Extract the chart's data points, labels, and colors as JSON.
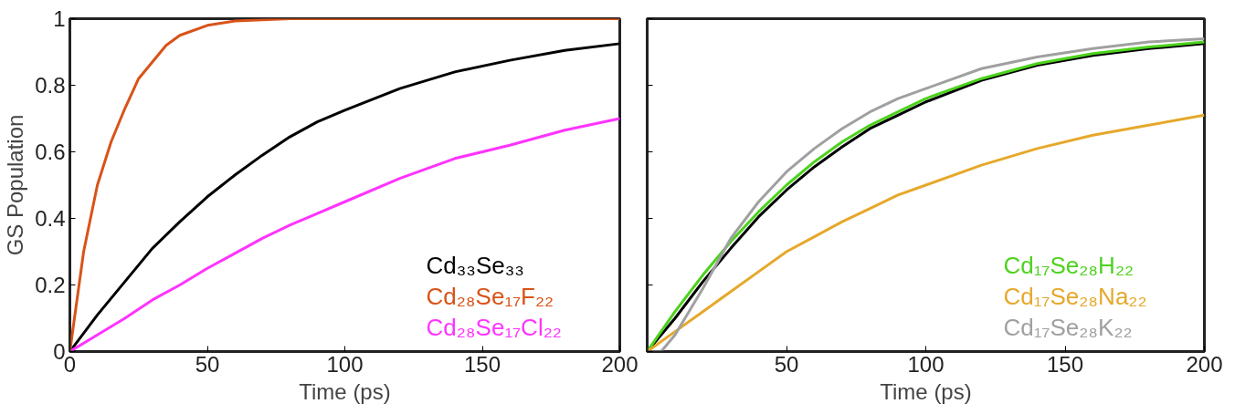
{
  "chart_data": [
    {
      "type": "line",
      "xlabel": "Time (ps)",
      "ylabel": "GS Population",
      "xlim": [
        0,
        200
      ],
      "ylim": [
        0,
        1
      ],
      "xticks": [
        0,
        50,
        100,
        150,
        200
      ],
      "yticks": [
        0,
        0.2,
        0.4,
        0.6,
        0.8,
        1
      ],
      "grid": false,
      "legend": "bottom right",
      "line_style": "solid",
      "marker": "none",
      "series": [
        {
          "name": "Cd₃₃Se₃₃",
          "color": "#000000",
          "x": [
            0,
            10,
            20,
            30,
            40,
            50,
            60,
            70,
            80,
            90,
            100,
            120,
            140,
            160,
            180,
            200
          ],
          "values": [
            0,
            0.11,
            0.21,
            0.31,
            0.39,
            0.465,
            0.53,
            0.59,
            0.645,
            0.69,
            0.725,
            0.79,
            0.84,
            0.875,
            0.905,
            0.925
          ]
        },
        {
          "name": "Cd₂₈Se₁₇F₂₂",
          "color": "#d95319",
          "x": [
            0,
            5,
            10,
            15,
            20,
            25,
            30,
            35,
            40,
            50,
            60,
            80,
            100,
            200
          ],
          "values": [
            0,
            0.3,
            0.5,
            0.63,
            0.73,
            0.82,
            0.87,
            0.92,
            0.95,
            0.98,
            0.993,
            1,
            1,
            1
          ]
        },
        {
          "name": "Cd₂₈Se₁₇Cl₂₂",
          "color": "#ff33ff",
          "x": [
            0,
            10,
            20,
            30,
            40,
            50,
            60,
            70,
            80,
            90,
            100,
            120,
            140,
            160,
            180,
            200
          ],
          "values": [
            0,
            0.05,
            0.1,
            0.155,
            0.2,
            0.25,
            0.295,
            0.34,
            0.38,
            0.415,
            0.45,
            0.52,
            0.58,
            0.62,
            0.665,
            0.7
          ]
        }
      ]
    },
    {
      "type": "line",
      "xlabel": "Time (ps)",
      "xlim": [
        0,
        200
      ],
      "ylim": [
        0,
        1
      ],
      "xticks": [
        {
          "value": 0,
          "label": null
        },
        50,
        100,
        150,
        200
      ],
      "yticks": [
        {
          "value": 0,
          "label": null
        },
        {
          "value": 0.2,
          "label": null
        },
        {
          "value": 0.4,
          "label": null
        },
        {
          "value": 0.6,
          "label": null
        },
        {
          "value": 0.8,
          "label": null
        },
        {
          "value": 1,
          "label": null
        }
      ],
      "tick_labels": "x",
      "grid": false,
      "legend": "bottom right",
      "line_style": "solid",
      "marker": "none",
      "series": [
        {
          "color": "#000000",
          "x": [
            0,
            10,
            20,
            30,
            40,
            50,
            60,
            70,
            80,
            90,
            100,
            120,
            140,
            160,
            180,
            200
          ],
          "values": [
            0,
            0.1,
            0.21,
            0.31,
            0.405,
            0.485,
            0.555,
            0.615,
            0.67,
            0.71,
            0.75,
            0.815,
            0.86,
            0.89,
            0.91,
            0.925
          ]
        },
        {
          "name": "Cd₁₇Se₂₈H₂₂",
          "color": "#4dd21e",
          "x": [
            0,
            10,
            20,
            30,
            40,
            50,
            60,
            70,
            80,
            90,
            100,
            120,
            140,
            160,
            180,
            200
          ],
          "values": [
            0,
            0.12,
            0.23,
            0.33,
            0.42,
            0.5,
            0.57,
            0.63,
            0.68,
            0.72,
            0.76,
            0.82,
            0.865,
            0.895,
            0.915,
            0.93
          ]
        },
        {
          "name": "Cd₁₇Se₂₈Na₂₂",
          "color": "#e6a82a",
          "x": [
            0,
            10,
            20,
            30,
            40,
            50,
            60,
            70,
            80,
            90,
            100,
            120,
            140,
            160,
            180,
            200
          ],
          "values": [
            0,
            0.06,
            0.12,
            0.18,
            0.24,
            0.3,
            0.345,
            0.39,
            0.43,
            0.47,
            0.5,
            0.56,
            0.61,
            0.65,
            0.68,
            0.71
          ]
        },
        {
          "name": "Cd₁₇Se₂₈K₂₂",
          "color": "#a0a0a0",
          "x": [
            0,
            5,
            10,
            20,
            30,
            40,
            50,
            60,
            70,
            80,
            90,
            100,
            120,
            140,
            160,
            180,
            200
          ],
          "values": [
            0,
            0,
            0.05,
            0.19,
            0.34,
            0.45,
            0.54,
            0.61,
            0.67,
            0.72,
            0.76,
            0.79,
            0.85,
            0.885,
            0.91,
            0.93,
            0.94
          ]
        }
      ]
    }
  ]
}
